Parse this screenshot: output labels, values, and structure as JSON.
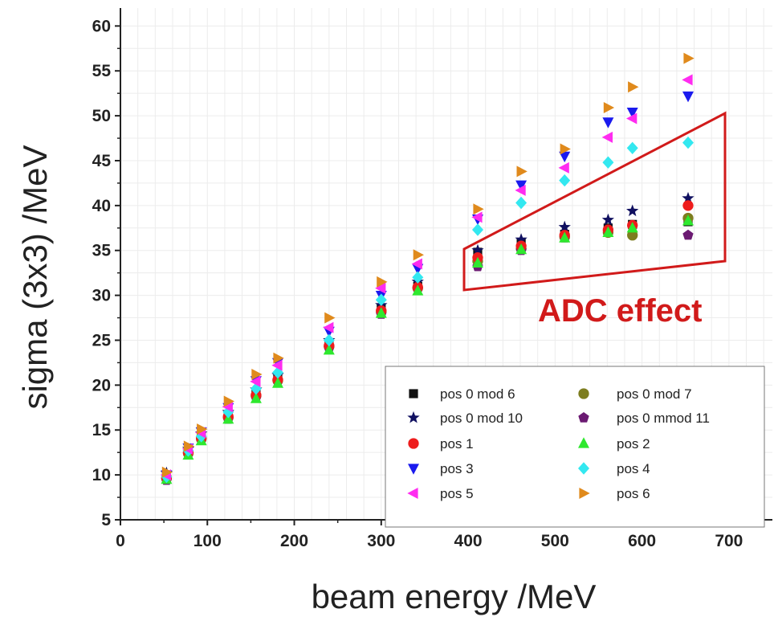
{
  "chart_data": {
    "type": "scatter",
    "xlabel": "beam energy /MeV",
    "ylabel": "sigma (3x3) /MeV",
    "xlim": [
      0,
      750
    ],
    "ylim": [
      5,
      62
    ],
    "xticks": [
      0,
      100,
      200,
      300,
      400,
      500,
      600,
      700
    ],
    "yticks": [
      5,
      10,
      15,
      20,
      25,
      30,
      35,
      40,
      45,
      50,
      55,
      60
    ],
    "grid": true,
    "legend_position": "bottom-right",
    "annotation": {
      "text": "ADC effect",
      "color": "#d11a1a"
    },
    "series": [
      {
        "name": "pos 0 mod 6",
        "marker": "square",
        "color": "#111111",
        "x": [
          53,
          78,
          93,
          124,
          156,
          181,
          240,
          300,
          342,
          411,
          461,
          511,
          561,
          589,
          653
        ],
        "y": [
          9.8,
          12.6,
          14.2,
          16.6,
          19.0,
          20.7,
          24.5,
          28.5,
          31.0,
          34.8,
          35.8,
          36.8,
          37.5,
          37.9,
          38.2
        ]
      },
      {
        "name": "pos 0 mod 7",
        "marker": "circle",
        "color": "#7d7d1f",
        "x": [
          53,
          78,
          93,
          124,
          156,
          181,
          240,
          300,
          342,
          411,
          461,
          511,
          561,
          589,
          653
        ],
        "y": [
          9.6,
          12.4,
          14.0,
          16.4,
          18.8,
          20.5,
          24.3,
          28.2,
          30.8,
          33.8,
          35.2,
          36.5,
          37.0,
          36.7,
          38.6
        ]
      },
      {
        "name": "pos 0 mod 10",
        "marker": "star",
        "color": "#101060",
        "x": [
          53,
          78,
          93,
          124,
          156,
          181,
          240,
          300,
          342,
          411,
          461,
          511,
          561,
          589,
          653
        ],
        "y": [
          10.2,
          12.9,
          14.6,
          17.0,
          19.5,
          21.1,
          25.0,
          28.9,
          31.5,
          35.0,
          36.2,
          37.6,
          38.4,
          39.4,
          40.8
        ]
      },
      {
        "name": "pos 0 mmod 11",
        "marker": "pentagon",
        "color": "#6b1a72",
        "x": [
          53,
          78,
          93,
          124,
          156,
          181,
          240,
          300,
          342,
          411,
          461,
          511,
          561,
          589,
          653
        ],
        "y": [
          9.4,
          12.3,
          13.9,
          16.2,
          18.6,
          20.4,
          24.1,
          27.9,
          30.7,
          33.2,
          35.0,
          36.4,
          37.1,
          37.6,
          36.7
        ]
      },
      {
        "name": "pos 1",
        "marker": "circle",
        "color": "#ee1c1c",
        "x": [
          53,
          78,
          93,
          124,
          156,
          181,
          240,
          300,
          342,
          411,
          461,
          511,
          561,
          589,
          653
        ],
        "y": [
          9.7,
          12.5,
          14.1,
          16.5,
          18.9,
          20.6,
          24.4,
          28.3,
          30.9,
          34.2,
          35.5,
          36.7,
          37.3,
          37.8,
          40.0
        ]
      },
      {
        "name": "pos 2",
        "marker": "triangle-up",
        "color": "#2ee82e",
        "x": [
          53,
          78,
          93,
          124,
          156,
          181,
          240,
          300,
          342,
          411,
          461,
          511,
          561,
          589,
          653
        ],
        "y": [
          9.5,
          12.2,
          13.8,
          16.2,
          18.5,
          20.2,
          23.9,
          28.0,
          30.5,
          33.6,
          35.1,
          36.4,
          37.0,
          37.5,
          38.3
        ]
      },
      {
        "name": "pos 3",
        "marker": "triangle-down",
        "color": "#1a1aee",
        "x": [
          53,
          78,
          93,
          124,
          156,
          181,
          240,
          300,
          342,
          411,
          461,
          511,
          561,
          589,
          653
        ],
        "y": [
          10.0,
          13.0,
          14.8,
          17.5,
          20.5,
          22.5,
          26.0,
          30.0,
          33.0,
          38.5,
          42.3,
          45.5,
          49.3,
          50.4,
          52.2
        ]
      },
      {
        "name": "pos 4",
        "marker": "diamond",
        "color": "#33e8f0",
        "x": [
          53,
          78,
          93,
          124,
          156,
          181,
          240,
          300,
          342,
          411,
          461,
          511,
          561,
          589,
          653
        ],
        "y": [
          9.8,
          12.7,
          14.3,
          17.0,
          19.6,
          21.4,
          25.0,
          29.5,
          32.0,
          37.3,
          40.3,
          42.8,
          44.8,
          46.4,
          47.0
        ]
      },
      {
        "name": "pos 5",
        "marker": "triangle-left",
        "color": "#ff2cf0",
        "x": [
          53,
          78,
          93,
          124,
          156,
          181,
          240,
          300,
          342,
          411,
          461,
          511,
          561,
          589,
          653
        ],
        "y": [
          10.0,
          12.9,
          14.7,
          17.6,
          20.4,
          22.2,
          26.4,
          30.8,
          33.5,
          38.7,
          41.7,
          44.2,
          47.6,
          49.7,
          54.0
        ]
      },
      {
        "name": "pos 6",
        "marker": "triangle-right",
        "color": "#e08a1c",
        "x": [
          53,
          78,
          93,
          124,
          156,
          181,
          240,
          300,
          342,
          411,
          461,
          511,
          561,
          589,
          653
        ],
        "y": [
          10.3,
          13.2,
          15.1,
          18.2,
          21.2,
          23.0,
          27.5,
          31.5,
          34.5,
          39.6,
          43.8,
          46.3,
          50.9,
          53.2,
          56.4
        ]
      }
    ],
    "legend_order": [
      0,
      1,
      2,
      3,
      4,
      5,
      6,
      7,
      8,
      9
    ]
  }
}
